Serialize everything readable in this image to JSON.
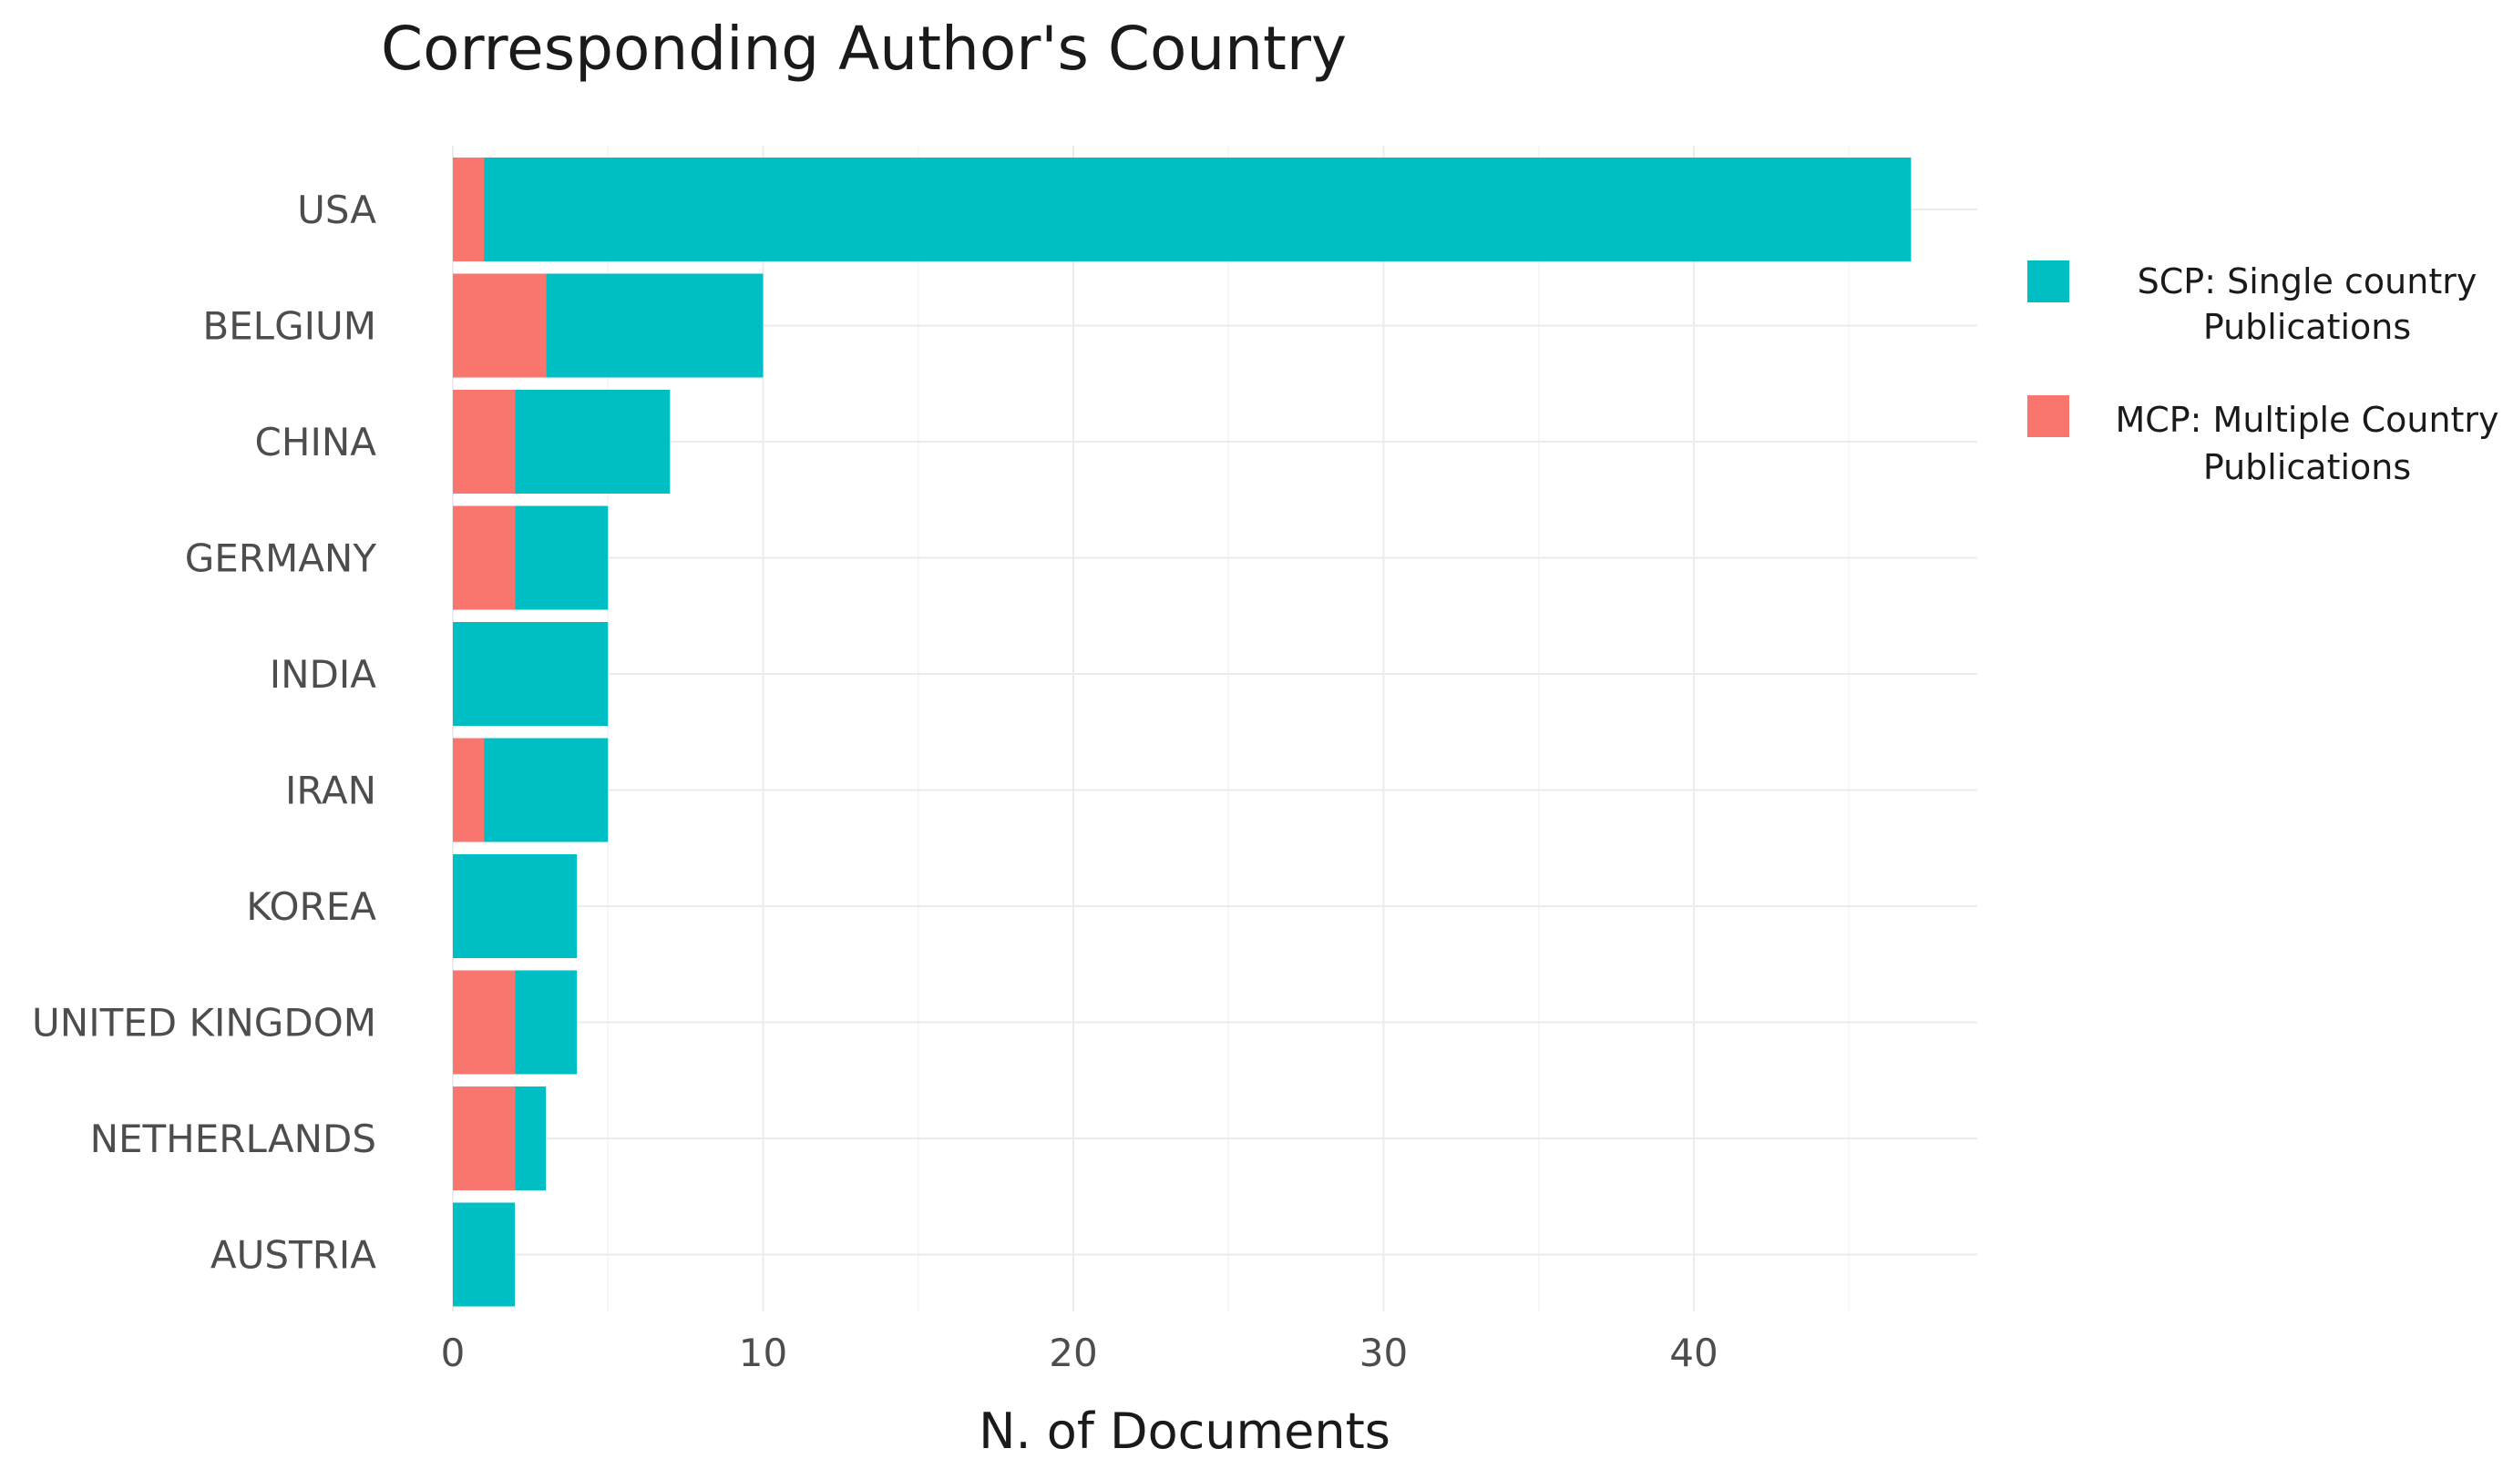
{
  "chart_data": {
    "type": "bar",
    "orientation": "horizontal",
    "stacked": true,
    "title": "Corresponding Author's Country",
    "xlabel": "N. of Documents",
    "ylabel": "",
    "categories": [
      "USA",
      "BELGIUM",
      "CHINA",
      "GERMANY",
      "INDIA",
      "IRAN",
      "KOREA",
      "UNITED KINGDOM",
      "NETHERLANDS",
      "AUSTRIA"
    ],
    "series": [
      {
        "name": "MCP: Multiple Country Publications",
        "key": "MCP",
        "color": "#F8766D",
        "values": [
          1,
          3,
          2,
          2,
          0,
          1,
          0,
          2,
          2,
          0
        ]
      },
      {
        "name": "SCP: Single country Publications",
        "key": "SCP",
        "color": "#00BFC4",
        "values": [
          46,
          7,
          5,
          3,
          5,
          4,
          4,
          2,
          1,
          2
        ]
      }
    ],
    "xlim": [
      0,
      49
    ],
    "xticks": [
      0,
      10,
      20,
      30,
      40
    ],
    "grid": true,
    "legend": {
      "position": "right",
      "items": [
        {
          "key": "SCP",
          "color": "#00BFC4",
          "lines": [
            "SCP: Single country",
            "Publications"
          ]
        },
        {
          "key": "MCP",
          "color": "#F8766D",
          "lines": [
            "MCP: Multiple Country",
            "Publications"
          ]
        }
      ]
    }
  }
}
